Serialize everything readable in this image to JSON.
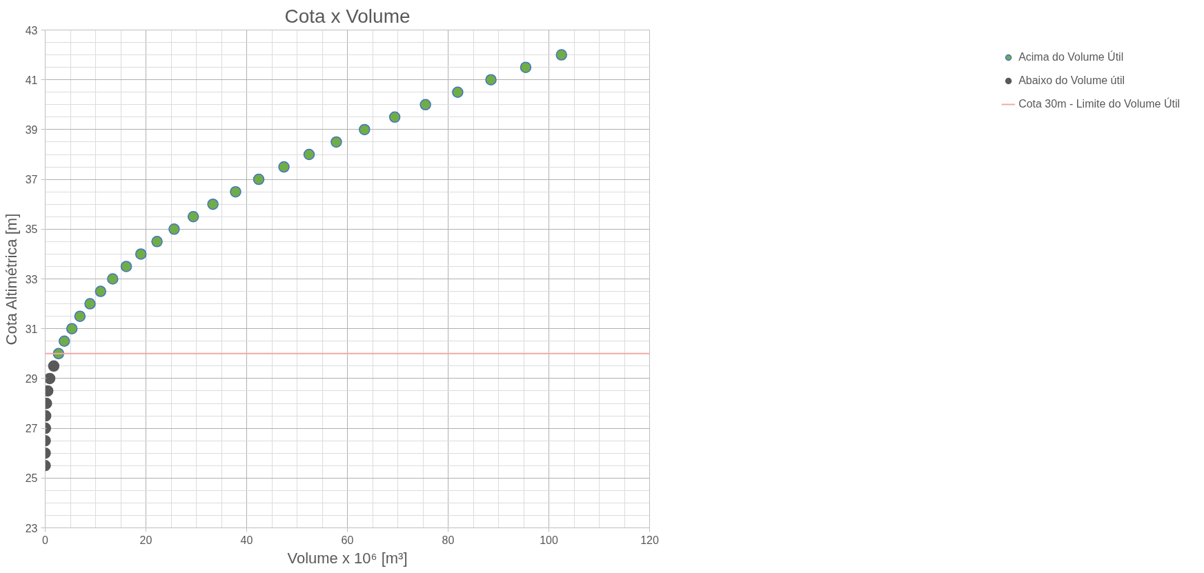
{
  "chart_data": {
    "type": "scatter",
    "title": "Cota x Volume",
    "xlabel": "Volume x 10⁶ [m³]",
    "ylabel": "Cota Altimétrica [m]",
    "xlim": [
      0,
      120
    ],
    "xticks": [
      0,
      20,
      40,
      60,
      80,
      100,
      120
    ],
    "ylim": [
      23,
      43
    ],
    "yticks": [
      23,
      25,
      27,
      29,
      31,
      33,
      35,
      37,
      39,
      41,
      43
    ],
    "grid": true,
    "legend": "right",
    "marker": "circle",
    "series": [
      {
        "name": "Acima do Volume Útil",
        "color": "#70ad47",
        "x": [
          2.65,
          3.8,
          5.3,
          6.9,
          8.9,
          11.0,
          13.4,
          16.1,
          19.0,
          22.2,
          25.6,
          29.4,
          33.3,
          37.8,
          42.4,
          47.4,
          52.4,
          57.8,
          63.4,
          69.4,
          75.5,
          81.9,
          88.5,
          95.4,
          102.5
        ],
        "values": [
          30,
          30.5,
          31,
          31.5,
          32,
          32.5,
          33,
          33.5,
          34,
          34.5,
          35,
          35.5,
          36,
          36.5,
          37,
          37.5,
          38,
          38.5,
          39,
          39.5,
          40,
          40.5,
          41,
          41.5,
          42
        ]
      },
      {
        "name": "Abaixo do Volume útil",
        "color": "#595959",
        "x": [
          1.7,
          0.9,
          0.5,
          0.25,
          0.1,
          0.05,
          0,
          0,
          0
        ],
        "values": [
          29.5,
          29,
          28.5,
          28,
          27.5,
          27,
          26.5,
          26,
          25.5
        ]
      }
    ],
    "ref_lines": [
      {
        "axis": "y",
        "value": 30,
        "label": "Cota 30m - Limite do Volume Útil",
        "color": "#f4a8a8"
      }
    ]
  }
}
